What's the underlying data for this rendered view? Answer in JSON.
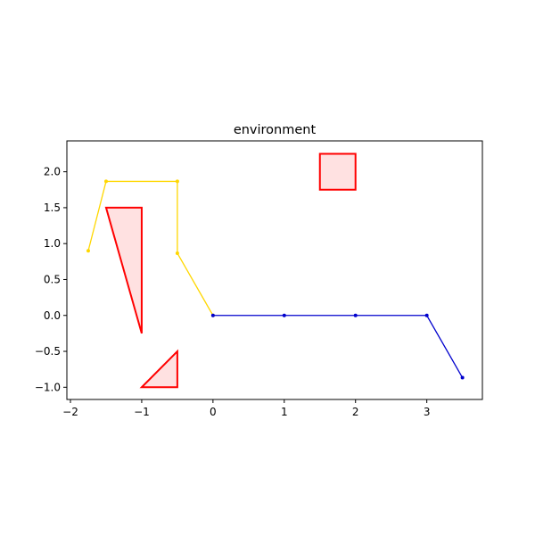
{
  "chart_data": {
    "type": "line",
    "title": "environment",
    "xlabel": "",
    "ylabel": "",
    "xlim": [
      -2.05,
      3.78
    ],
    "ylim": [
      -1.17,
      2.43
    ],
    "grid": false,
    "x_ticks": [
      {
        "value": -2,
        "label": "−2"
      },
      {
        "value": -1,
        "label": "−1"
      },
      {
        "value": 0,
        "label": "0"
      },
      {
        "value": 1,
        "label": "1"
      },
      {
        "value": 2,
        "label": "2"
      },
      {
        "value": 3,
        "label": "3"
      }
    ],
    "y_ticks": [
      {
        "value": -1.0,
        "label": "−1.0"
      },
      {
        "value": -0.5,
        "label": "−0.5"
      },
      {
        "value": 0.0,
        "label": "0.0"
      },
      {
        "value": 0.5,
        "label": "0.5"
      },
      {
        "value": 1.0,
        "label": "1.0"
      },
      {
        "value": 1.5,
        "label": "1.5"
      },
      {
        "value": 2.0,
        "label": "2.0"
      }
    ],
    "series": [
      {
        "color": "#ffd700",
        "points": [
          [
            0,
            0
          ],
          [
            -0.5,
            0.866
          ],
          [
            -0.5,
            1.866
          ],
          [
            -1.5,
            1.866
          ],
          [
            -1.75,
            0.9
          ]
        ]
      },
      {
        "color": "#0000cd",
        "points": [
          [
            0,
            0
          ],
          [
            1,
            0
          ],
          [
            2,
            0
          ],
          [
            3,
            0
          ],
          [
            3.5,
            -0.866
          ]
        ]
      }
    ],
    "obstacles": [
      {
        "points": [
          [
            -1.5,
            1.5
          ],
          [
            -1.0,
            1.5
          ],
          [
            -1.0,
            -0.25
          ]
        ],
        "edge_color": "#ff0000",
        "fill_color": "#ffe1e1"
      },
      {
        "points": [
          [
            -1.0,
            -1.0
          ],
          [
            -0.5,
            -1.0
          ],
          [
            -0.5,
            -0.5
          ]
        ],
        "edge_color": "#ff0000",
        "fill_color": "#ffe1e1"
      },
      {
        "points": [
          [
            1.5,
            1.75
          ],
          [
            2.0,
            1.75
          ],
          [
            2.0,
            2.25
          ],
          [
            1.5,
            2.25
          ]
        ],
        "edge_color": "#ff0000",
        "fill_color": "#ffe1e1"
      }
    ]
  }
}
